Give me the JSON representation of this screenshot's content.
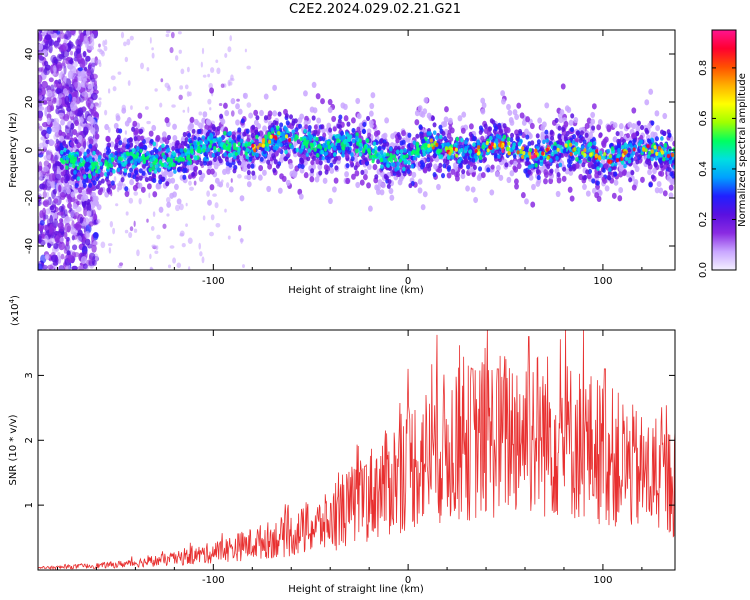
{
  "title": "C2E2.2024.029.02.21.G21",
  "colors": {
    "frame": "#000000",
    "snr_line": "#e83030"
  },
  "chart_data": [
    {
      "type": "heatmap",
      "xlabel": "Height of straight line (km)",
      "ylabel": "Frequency (Hz)",
      "xlim": [
        -190,
        137
      ],
      "ylim": [
        -50,
        50
      ],
      "x_ticks": [
        -100,
        0,
        100
      ],
      "y_ticks": [
        -40,
        -20,
        0,
        20,
        40
      ],
      "colorbar": {
        "label": "Normalized spectral amplitude",
        "range": [
          0.0,
          0.95
        ],
        "ticks": [
          "0.0",
          "0.2",
          "0.4",
          "0.6",
          "0.8"
        ],
        "tick_values": [
          0.0,
          0.2,
          0.4,
          0.6,
          0.8
        ],
        "colormap": [
          "#f4f0ff",
          "#c9a6ff",
          "#8a2be2",
          "#5a10e0",
          "#2020ff",
          "#00a0ff",
          "#00e0e0",
          "#00ff60",
          "#a0ff00",
          "#ffff00",
          "#ffb000",
          "#ff5000",
          "#ff0030",
          "#ff1490"
        ]
      },
      "ridge": {
        "x": [
          -175,
          -150,
          -130,
          -110,
          -90,
          -70,
          -50,
          -30,
          -15,
          0,
          15,
          30,
          45,
          60,
          75,
          90,
          105,
          120,
          135
        ],
        "y": [
          -6,
          -5,
          -4,
          -1,
          2,
          3,
          4,
          1,
          -2,
          -3,
          1,
          1,
          0,
          0,
          0,
          -2,
          -1,
          -1,
          -2
        ]
      }
    },
    {
      "type": "line",
      "xlabel": "Height of straight line (km)",
      "ylabel": "SNR (10 * v/v)",
      "y_scale_note": "(x10",
      "y_scale_exp": "4",
      "y_scale_close": ")",
      "xlim": [
        -190,
        137
      ],
      "ylim": [
        0,
        37000
      ],
      "x_ticks": [
        -100,
        0,
        100
      ],
      "y_ticks": [
        1,
        2,
        3
      ],
      "envelope": {
        "x": [
          -190,
          -150,
          -120,
          -100,
          -80,
          -60,
          -40,
          -25,
          -10,
          0,
          20,
          40,
          60,
          80,
          100,
          120,
          137
        ],
        "y": [
          400,
          1200,
          2500,
          4000,
          6000,
          8000,
          11000,
          16000,
          20000,
          24000,
          28000,
          30000,
          32000,
          30000,
          27000,
          22000,
          20000
        ]
      },
      "peaks": [
        {
          "x": 62,
          "y": 36000
        },
        {
          "x": 33,
          "y": 31000
        },
        {
          "x": 46,
          "y": 31000
        },
        {
          "x": 101,
          "y": 31000
        },
        {
          "x": -22,
          "y": 16000
        }
      ]
    }
  ]
}
